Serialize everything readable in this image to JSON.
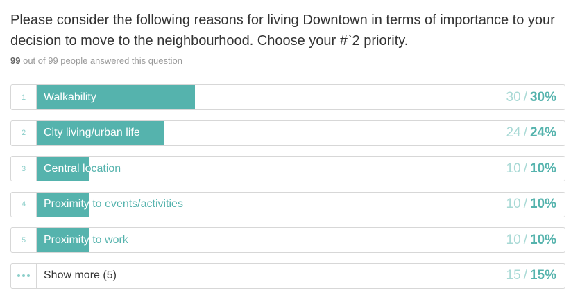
{
  "question": {
    "title": "Please consider the following reasons for living Downtown in terms of importance to your decision to move to the neighbourhood. Choose your #`2 priority.",
    "answered_count": "99",
    "answered_rest": "out of 99 people answered this question"
  },
  "results": [
    {
      "rank": "1",
      "label": "Walkability",
      "count": "30",
      "percent": "30%",
      "fraction": 0.3
    },
    {
      "rank": "2",
      "label": "City living/urban life",
      "count": "24",
      "percent": "24%",
      "fraction": 0.24
    },
    {
      "rank": "3",
      "label": "Central location",
      "count": "10",
      "percent": "10%",
      "fraction": 0.1
    },
    {
      "rank": "4",
      "label": "Proximity to events/activities",
      "count": "10",
      "percent": "10%",
      "fraction": 0.1
    },
    {
      "rank": "5",
      "label": "Proximity to work",
      "count": "10",
      "percent": "10%",
      "fraction": 0.1
    }
  ],
  "show_more": {
    "label": "Show more (5)",
    "count": "15",
    "percent": "15%",
    "icon": "ellipsis-icon"
  },
  "colors": {
    "accent": "#55b3ad",
    "accent_light": "#a8d9d5"
  }
}
